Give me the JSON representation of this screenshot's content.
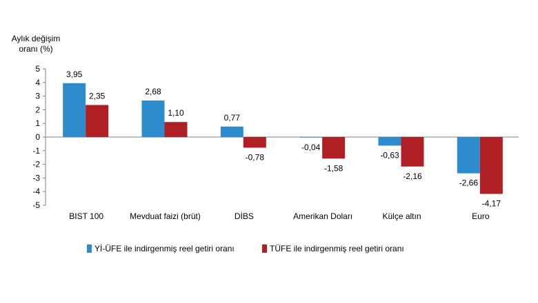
{
  "chart_data": {
    "type": "bar",
    "title": "",
    "ylabel": "Aylık değişim oranı (%)",
    "ylabel_lines": [
      "Aylık değişim",
      "oranı (%)"
    ],
    "xlabel": "",
    "ylim": [
      -5,
      5
    ],
    "yticks": [
      -5,
      -4,
      -3,
      -2,
      -1,
      0,
      1,
      2,
      3,
      4,
      5
    ],
    "categories": [
      "BIST 100",
      "Mevduat faizi (brüt)",
      "DİBS",
      "Amerikan Doları",
      "Külçe altın",
      "Euro"
    ],
    "series": [
      {
        "name": "Yİ-ÜFE ile indirgenmiş reel getiri oranı",
        "color": "#2e8bcc",
        "values": [
          3.95,
          2.68,
          0.77,
          -0.04,
          -0.63,
          -2.66
        ],
        "labels": [
          "3,95",
          "2,68",
          "0,77",
          "-0,04",
          "-0,63",
          "-2,66"
        ]
      },
      {
        "name": "TÜFE ile indirgenmiş reel getiri oranı",
        "color": "#b01f24",
        "values": [
          2.35,
          1.1,
          -0.78,
          -1.58,
          -2.16,
          -4.17
        ],
        "labels": [
          "2,35",
          "1,10",
          "-0,78",
          "-1,58",
          "-2,16",
          "-4,17"
        ]
      }
    ],
    "grid": false,
    "legend_position": "bottom"
  }
}
